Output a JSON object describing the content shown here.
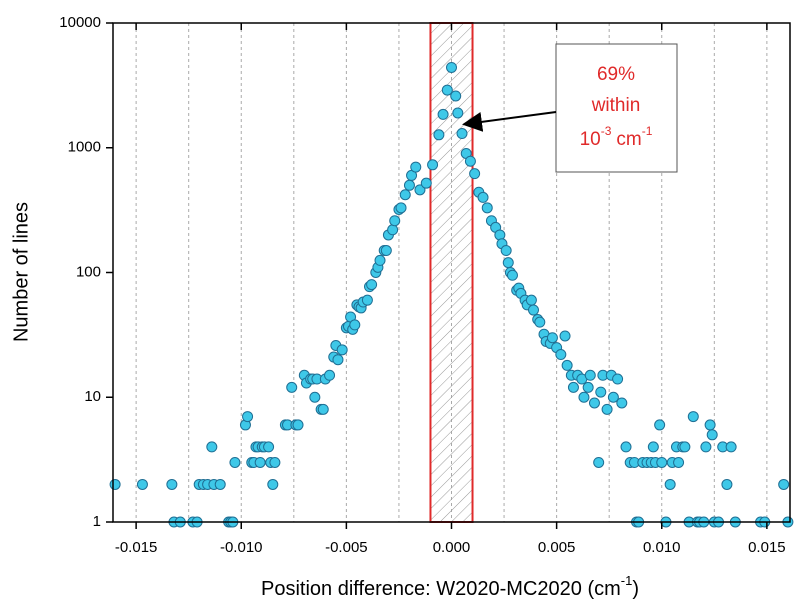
{
  "chart_data": {
    "type": "scatter",
    "xlabel": "Position difference: W2020-MC2020 (cm",
    "xlabel_sup": "-1",
    "xlabel_end": ")",
    "ylabel": "Number of lines",
    "log_y": true,
    "grid": true,
    "color": "#3ec8e8",
    "edge_color": "#1f6f94",
    "xlim": [
      -0.0161,
      0.0161
    ],
    "ylim": [
      1,
      10000
    ],
    "xticks": [
      {
        "value": -0.015,
        "label": "-0.015"
      },
      {
        "value": -0.01,
        "label": "-0.010"
      },
      {
        "value": -0.005,
        "label": "-0.005"
      },
      {
        "value": 0,
        "label": "0.000"
      },
      {
        "value": 0.005,
        "label": "0.005"
      },
      {
        "value": 0.01,
        "label": "0.010"
      },
      {
        "value": 0.015,
        "label": "0.015"
      }
    ],
    "xgrid": [
      -0.015,
      -0.0125,
      -0.01,
      -0.0075,
      -0.005,
      -0.0025,
      0,
      0.0025,
      0.005,
      0.0075,
      0.01,
      0.0125,
      0.015
    ],
    "yticks": [
      1,
      10,
      100,
      1000,
      10000
    ],
    "highlight_range": [
      -0.001,
      0.001
    ],
    "highlight_color": "#e02a2a",
    "annotation": {
      "lines": [
        "69%",
        "within"
      ],
      "base": "10",
      "base_exp": "-3",
      "unit": "cm",
      "unit_exp": "-1",
      "color": "#e02a2a"
    },
    "x": [
      -0.016,
      -0.0147,
      -0.0133,
      -0.0132,
      -0.0129,
      -0.0123,
      -0.0121,
      -0.012,
      -0.0118,
      -0.0116,
      -0.0114,
      -0.0113,
      -0.011,
      -0.0106,
      -0.0105,
      -0.0104,
      -0.0103,
      -0.0098,
      -0.0097,
      -0.0095,
      -0.0094,
      -0.0093,
      -0.0092,
      -0.0091,
      -0.009,
      -0.0089,
      -0.0087,
      -0.0086,
      -0.0085,
      -0.0084,
      -0.0079,
      -0.0078,
      -0.0076,
      -0.0074,
      -0.0073,
      -0.007,
      -0.0069,
      -0.0067,
      -0.0066,
      -0.0065,
      -0.0064,
      -0.0062,
      -0.0061,
      -0.006,
      -0.0058,
      -0.0056,
      -0.0055,
      -0.0054,
      -0.0052,
      -0.005,
      -0.0049,
      -0.0048,
      -0.0047,
      -0.0046,
      -0.0045,
      -0.0044,
      -0.0043,
      -0.0042,
      -0.004,
      -0.0039,
      -0.0038,
      -0.0036,
      -0.0035,
      -0.0034,
      -0.0032,
      -0.0031,
      -0.003,
      -0.0028,
      -0.0027,
      -0.0025,
      -0.0024,
      -0.0022,
      -0.002,
      -0.0019,
      -0.0017,
      -0.0015,
      -0.0012,
      -0.0009,
      -0.0006,
      -0.0004,
      -0.0002,
      0,
      0.0002,
      0.0003,
      0.0005,
      0.0007,
      0.0009,
      0.0011,
      0.0013,
      0.0015,
      0.0017,
      0.0019,
      0.0021,
      0.0023,
      0.0024,
      0.0026,
      0.0027,
      0.0028,
      0.0029,
      0.0031,
      0.0032,
      0.0033,
      0.0035,
      0.0036,
      0.0038,
      0.0039,
      0.0041,
      0.0042,
      0.0044,
      0.0045,
      0.0047,
      0.0048,
      0.005,
      0.0052,
      0.0054,
      0.0055,
      0.0057,
      0.0058,
      0.006,
      0.0062,
      0.0063,
      0.0065,
      0.0066,
      0.0068,
      0.007,
      0.0071,
      0.0072,
      0.0074,
      0.0076,
      0.0077,
      0.0079,
      0.0081,
      0.0083,
      0.0085,
      0.0087,
      0.0088,
      0.0089,
      0.0091,
      0.0093,
      0.0095,
      0.0096,
      0.0097,
      0.0099,
      0.01,
      0.0102,
      0.0104,
      0.0105,
      0.0107,
      0.0108,
      0.011,
      0.0111,
      0.0113,
      0.0115,
      0.0117,
      0.0118,
      0.012,
      0.0121,
      0.0123,
      0.0124,
      0.0125,
      0.0127,
      0.0129,
      0.0131,
      0.0133,
      0.0135,
      0.0147,
      0.0149,
      0.0158,
      0.016
    ],
    "values": [
      2,
      2,
      2,
      1,
      1,
      1,
      1,
      2,
      2,
      2,
      4,
      2,
      2,
      1,
      1,
      1,
      3,
      6,
      7,
      3,
      3,
      4,
      4,
      3,
      4,
      4,
      4,
      3,
      2,
      3,
      6,
      6,
      12,
      6,
      6,
      15,
      13,
      14,
      14,
      10,
      14,
      8,
      8,
      14,
      15,
      21,
      26,
      20,
      24,
      36,
      37,
      44,
      35,
      38,
      55,
      53,
      52,
      58,
      60,
      77,
      80,
      100,
      110,
      125,
      150,
      150,
      200,
      220,
      260,
      320,
      330,
      420,
      500,
      600,
      700,
      460,
      520,
      730,
      1270,
      1850,
      2900,
      4400,
      2600,
      1900,
      1300,
      900,
      780,
      620,
      440,
      400,
      330,
      260,
      230,
      200,
      170,
      150,
      120,
      100,
      95,
      72,
      75,
      68,
      60,
      55,
      60,
      50,
      42,
      40,
      32,
      28,
      27,
      30,
      25,
      22,
      31,
      18,
      15,
      12,
      15,
      14,
      10,
      12,
      15,
      9,
      3,
      11,
      15,
      8,
      15,
      10,
      14,
      9,
      4,
      3,
      3,
      1,
      1,
      3,
      3,
      3,
      4,
      3,
      6,
      3,
      1,
      2,
      3,
      4,
      3,
      4,
      4,
      1,
      7,
      1,
      1,
      1,
      4,
      6,
      5,
      1,
      1,
      4,
      2,
      4,
      1,
      1,
      1,
      2,
      1
    ]
  }
}
